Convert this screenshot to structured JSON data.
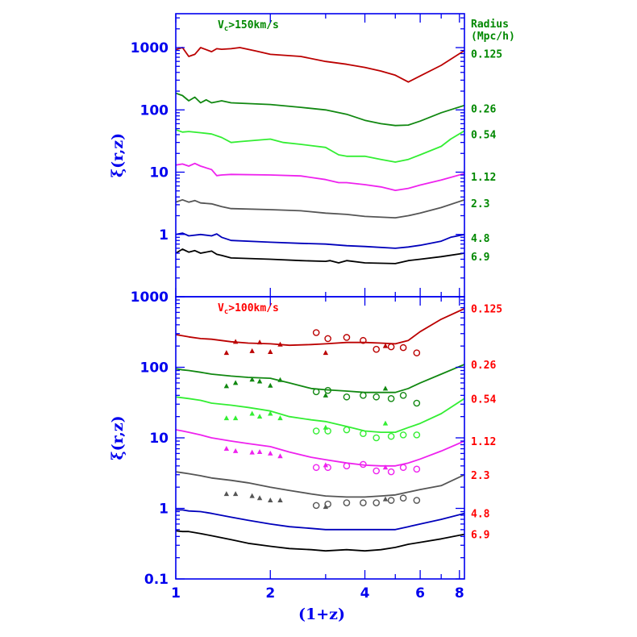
{
  "colors": {
    "axis": "#0000ee",
    "top_labels": "#008800",
    "bottom_labels": "#ff0000",
    "series": [
      "#bb0000",
      "#118811",
      "#33ee33",
      "#ee22ee",
      "#555555",
      "#0000bb",
      "#000000"
    ]
  },
  "chart_data": [
    {
      "type": "line",
      "panel": "top",
      "title": "Vc>150km/s",
      "title_main": "V",
      "title_sub": "c",
      "title_rest": ">150km/s",
      "xlabel": "(1+z)",
      "ylabel": "ξ(r,z)",
      "xscale": "log",
      "yscale": "log",
      "xlim": [
        1,
        8.3
      ],
      "ylim": [
        0.1,
        3500
      ],
      "x_ticks": [
        "1",
        "2",
        "4",
        "6",
        "8"
      ],
      "y_ticks": [
        "1",
        "10",
        "100",
        "1000"
      ],
      "y_tick_values": [
        1,
        10,
        100,
        1000
      ],
      "side_header": [
        "Radius",
        "(Mpc/h)"
      ],
      "series": [
        {
          "name": "0.125",
          "x": [
            1.0,
            1.05,
            1.1,
            1.15,
            1.2,
            1.3,
            1.35,
            1.4,
            1.5,
            1.6,
            1.8,
            2.0,
            2.5,
            3.0,
            3.5,
            4.0,
            4.5,
            5.0,
            5.5,
            6.0,
            7.0,
            8.3
          ],
          "y": [
            930,
            1000,
            720,
            780,
            1000,
            860,
            960,
            940,
            960,
            1000,
            880,
            780,
            720,
            600,
            540,
            480,
            420,
            360,
            280,
            350,
            520,
            900
          ]
        },
        {
          "name": "0.26",
          "x": [
            1.0,
            1.05,
            1.1,
            1.15,
            1.2,
            1.25,
            1.3,
            1.35,
            1.4,
            1.5,
            1.6,
            2.0,
            2.5,
            3.0,
            3.5,
            4.0,
            4.5,
            5.0,
            5.5,
            6.0,
            7.0,
            8.3
          ],
          "y": [
            185,
            170,
            140,
            160,
            130,
            145,
            130,
            135,
            140,
            130,
            128,
            122,
            110,
            100,
            85,
            68,
            60,
            56,
            57,
            66,
            90,
            118
          ]
        },
        {
          "name": "0.54",
          "x": [
            1.0,
            1.05,
            1.1,
            1.2,
            1.3,
            1.4,
            1.5,
            1.6,
            2.0,
            2.2,
            2.5,
            3.0,
            3.3,
            3.5,
            4.0,
            4.5,
            5.0,
            5.5,
            6.0,
            7.0,
            7.5,
            8.3
          ],
          "y": [
            48,
            44,
            45,
            43,
            41,
            36,
            30,
            31,
            34,
            30,
            28,
            25,
            19,
            18,
            18,
            16,
            14.5,
            16,
            19,
            26,
            34,
            46
          ]
        },
        {
          "name": "1.12",
          "x": [
            1.0,
            1.05,
            1.1,
            1.15,
            1.2,
            1.3,
            1.35,
            1.4,
            1.5,
            2.0,
            2.5,
            3.0,
            3.3,
            3.5,
            4.0,
            4.5,
            5.0,
            5.5,
            6.0,
            7.0,
            8.3
          ],
          "y": [
            13,
            13.5,
            12.5,
            13.8,
            12.5,
            11,
            8.8,
            9,
            9.2,
            9,
            8.7,
            7.6,
            6.8,
            6.8,
            6.3,
            5.8,
            5.1,
            5.5,
            6.2,
            7.5,
            9.5
          ]
        },
        {
          "name": "2.3",
          "x": [
            1.0,
            1.05,
            1.1,
            1.15,
            1.2,
            1.3,
            1.4,
            1.5,
            2.0,
            2.5,
            3.0,
            3.5,
            4.0,
            5.0,
            5.5,
            6.0,
            7.0,
            8.3
          ],
          "y": [
            3.3,
            3.6,
            3.3,
            3.5,
            3.2,
            3.1,
            2.8,
            2.6,
            2.5,
            2.4,
            2.2,
            2.1,
            1.95,
            1.85,
            2.0,
            2.2,
            2.7,
            3.6
          ]
        },
        {
          "name": "4.8",
          "x": [
            1.0,
            1.05,
            1.1,
            1.2,
            1.3,
            1.35,
            1.4,
            1.5,
            2.0,
            2.5,
            3.0,
            3.5,
            4.0,
            5.0,
            5.5,
            6.0,
            7.0,
            7.5,
            8.3
          ],
          "y": [
            1.0,
            1.05,
            0.95,
            1.0,
            0.95,
            1.02,
            0.9,
            0.8,
            0.75,
            0.72,
            0.7,
            0.66,
            0.64,
            0.6,
            0.63,
            0.67,
            0.78,
            0.9,
            1.0
          ]
        },
        {
          "name": "6.9",
          "x": [
            1.0,
            1.05,
            1.1,
            1.15,
            1.2,
            1.3,
            1.35,
            1.4,
            1.5,
            2.0,
            2.5,
            3.0,
            3.1,
            3.3,
            3.5,
            4.0,
            5.0,
            5.5,
            6.0,
            7.0,
            8.3
          ],
          "y": [
            0.5,
            0.58,
            0.52,
            0.55,
            0.5,
            0.54,
            0.48,
            0.46,
            0.42,
            0.4,
            0.38,
            0.37,
            0.38,
            0.35,
            0.38,
            0.35,
            0.34,
            0.38,
            0.4,
            0.44,
            0.5
          ]
        }
      ]
    },
    {
      "type": "line",
      "panel": "bottom",
      "title": "Vc>100km/s",
      "title_main": "V",
      "title_sub": "c",
      "title_rest": ">100km/s",
      "xlabel": "(1+z)",
      "ylabel": "ξ(r,z)",
      "xscale": "log",
      "yscale": "log",
      "xlim": [
        1,
        8.3
      ],
      "ylim": [
        0.1,
        1000
      ],
      "x_ticks": [
        "1",
        "2",
        "4",
        "6",
        "8"
      ],
      "y_ticks": [
        "0.1",
        "1",
        "10",
        "100",
        "1000"
      ],
      "y_tick_values": [
        0.1,
        1,
        10,
        100,
        1000
      ],
      "series": [
        {
          "name": "0.125",
          "x": [
            1.0,
            1.05,
            1.1,
            1.2,
            1.3,
            1.5,
            1.7,
            2.0,
            2.3,
            2.7,
            3.0,
            3.5,
            4.0,
            4.5,
            5.0,
            5.5,
            6.0,
            7.0,
            8.3
          ],
          "y": [
            290,
            280,
            270,
            255,
            250,
            230,
            220,
            215,
            205,
            210,
            215,
            225,
            225,
            220,
            215,
            240,
            320,
            480,
            680
          ],
          "circles_x": [
            2.8,
            3.05,
            3.5,
            3.95,
            4.35,
            4.85,
            5.3,
            5.85
          ],
          "circles_y": [
            310,
            255,
            265,
            240,
            180,
            195,
            190,
            160
          ],
          "triangles_x": [
            1.45,
            1.55,
            1.75,
            1.85,
            2.0,
            2.15,
            3.0,
            4.65
          ],
          "triangles_y": [
            160,
            230,
            170,
            225,
            165,
            210,
            160,
            200
          ]
        },
        {
          "name": "0.26",
          "x": [
            1.0,
            1.05,
            1.1,
            1.2,
            1.3,
            1.5,
            1.7,
            2.0,
            2.3,
            2.7,
            3.0,
            3.5,
            4.0,
            4.5,
            5.0,
            5.5,
            6.0,
            7.0,
            8.3
          ],
          "y": [
            95,
            92,
            90,
            85,
            80,
            75,
            72,
            70,
            60,
            50,
            48,
            46,
            44,
            44,
            44,
            50,
            60,
            80,
            110
          ],
          "circles_x": [
            2.8,
            3.05,
            3.5,
            3.95,
            4.35,
            4.85,
            5.3,
            5.85
          ],
          "circles_y": [
            45,
            47,
            38,
            40,
            38,
            36,
            40,
            31
          ],
          "triangles_x": [
            1.45,
            1.55,
            1.75,
            1.85,
            2.0,
            2.15,
            3.0,
            4.65
          ],
          "triangles_y": [
            54,
            60,
            67,
            63,
            55,
            66,
            40,
            50
          ]
        },
        {
          "name": "0.54",
          "x": [
            1.0,
            1.05,
            1.1,
            1.2,
            1.3,
            1.5,
            1.7,
            2.0,
            2.3,
            2.7,
            3.0,
            3.5,
            4.0,
            4.5,
            5.0,
            5.5,
            6.0,
            7.0,
            8.3
          ],
          "y": [
            38,
            37,
            36,
            34,
            31,
            29,
            27,
            24,
            20,
            18,
            17,
            14.5,
            12.5,
            12,
            12,
            14,
            16,
            22,
            36
          ],
          "circles_x": [
            2.8,
            3.05,
            3.5,
            3.95,
            4.35,
            4.85,
            5.3,
            5.85
          ],
          "circles_y": [
            12.5,
            12.5,
            13,
            11.5,
            10,
            10.5,
            11,
            11
          ],
          "triangles_x": [
            1.45,
            1.55,
            1.75,
            1.85,
            2.0,
            2.15,
            3.0,
            4.65
          ],
          "triangles_y": [
            19,
            19,
            22,
            20,
            22,
            19,
            14,
            16
          ]
        },
        {
          "name": "1.12",
          "x": [
            1.0,
            1.05,
            1.1,
            1.2,
            1.3,
            1.5,
            1.7,
            2.0,
            2.3,
            2.7,
            3.0,
            3.5,
            4.0,
            4.5,
            5.0,
            5.5,
            6.0,
            7.0,
            8.3
          ],
          "y": [
            13,
            12.5,
            12,
            11,
            10,
            9,
            8.3,
            7.5,
            6.3,
            5.3,
            4.9,
            4.4,
            4.1,
            4.0,
            4.0,
            4.4,
            5.0,
            6.5,
            9.0
          ],
          "circles_x": [
            2.8,
            3.05,
            3.5,
            3.95,
            4.35,
            4.85,
            5.3,
            5.85
          ],
          "circles_y": [
            3.8,
            3.8,
            4.0,
            4.2,
            3.4,
            3.3,
            3.8,
            3.6
          ],
          "triangles_x": [
            1.45,
            1.55,
            1.75,
            1.85,
            2.0,
            2.15,
            3.0,
            4.65
          ],
          "triangles_y": [
            7,
            6.5,
            6.2,
            6.3,
            6.0,
            5.5,
            4.1,
            3.8
          ]
        },
        {
          "name": "2.3",
          "x": [
            1.0,
            1.05,
            1.1,
            1.2,
            1.3,
            1.5,
            1.7,
            2.0,
            2.3,
            2.7,
            3.0,
            3.5,
            4.0,
            4.5,
            5.0,
            5.5,
            6.0,
            7.0,
            8.3
          ],
          "y": [
            3.3,
            3.2,
            3.1,
            2.9,
            2.7,
            2.5,
            2.3,
            2.0,
            1.8,
            1.6,
            1.5,
            1.45,
            1.45,
            1.5,
            1.55,
            1.7,
            1.85,
            2.1,
            3.0
          ],
          "circles_x": [
            2.8,
            3.05,
            3.5,
            3.95,
            4.35,
            4.85,
            5.3,
            5.85
          ],
          "circles_y": [
            1.1,
            1.15,
            1.2,
            1.2,
            1.2,
            1.3,
            1.4,
            1.3
          ],
          "triangles_x": [
            1.45,
            1.55,
            1.75,
            1.85,
            2.0,
            2.15,
            3.0,
            4.65
          ],
          "triangles_y": [
            1.6,
            1.6,
            1.5,
            1.4,
            1.3,
            1.3,
            1.05,
            1.35
          ]
        },
        {
          "name": "4.8",
          "x": [
            1.0,
            1.05,
            1.1,
            1.2,
            1.3,
            1.5,
            1.7,
            2.0,
            2.3,
            2.7,
            3.0,
            3.5,
            4.0,
            4.5,
            5.0,
            5.5,
            6.0,
            7.0,
            8.3
          ],
          "y": [
            0.95,
            0.95,
            0.92,
            0.9,
            0.85,
            0.75,
            0.68,
            0.6,
            0.55,
            0.52,
            0.5,
            0.5,
            0.5,
            0.5,
            0.5,
            0.55,
            0.6,
            0.7,
            0.85
          ]
        },
        {
          "name": "6.9",
          "x": [
            1.0,
            1.05,
            1.1,
            1.2,
            1.3,
            1.5,
            1.7,
            2.0,
            2.3,
            2.7,
            3.0,
            3.5,
            4.0,
            4.5,
            5.0,
            5.5,
            6.0,
            7.0,
            8.3
          ],
          "y": [
            0.48,
            0.47,
            0.47,
            0.44,
            0.41,
            0.36,
            0.32,
            0.29,
            0.27,
            0.26,
            0.25,
            0.26,
            0.25,
            0.26,
            0.28,
            0.31,
            0.33,
            0.37,
            0.43
          ]
        }
      ]
    }
  ]
}
